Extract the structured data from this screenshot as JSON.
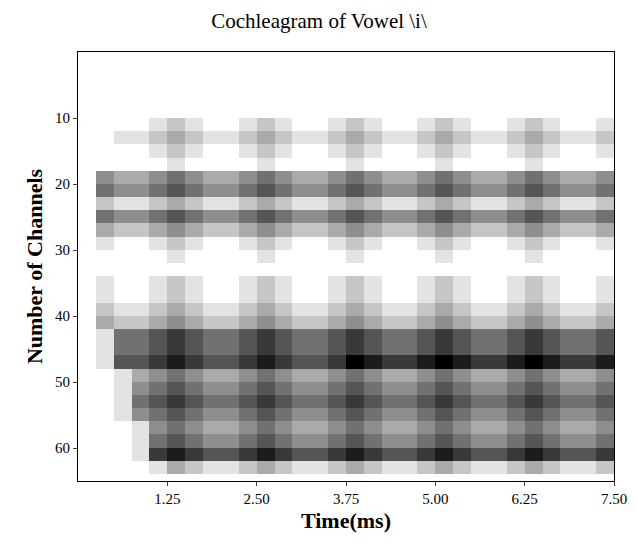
{
  "chart_data": {
    "type": "heatmap",
    "title": "Cochleagram of Vowel \\i\\",
    "x_label": "Time(ms)",
    "y_label": "Number of Channels",
    "xlim": [
      0,
      7.5
    ],
    "xticks": [
      1.25,
      {
        "value": 2.5,
        "label": "2.50"
      },
      3.75,
      {
        "value": 5,
        "label": "5.00"
      },
      6.25,
      {
        "value": 7.5,
        "label": "7.50"
      }
    ],
    "ylim": [
      65,
      0
    ],
    "yticks": [
      10,
      20,
      30,
      40,
      50,
      60
    ],
    "grid": false,
    "x": [
      0.125,
      0.375,
      0.625,
      0.875,
      1.125,
      1.375,
      1.625,
      1.875,
      2.125,
      2.375,
      2.625,
      2.875,
      3.125,
      3.375,
      3.625,
      3.875,
      4.125,
      4.375,
      4.625,
      4.875,
      5.125,
      5.375,
      5.625,
      5.875,
      6.125,
      6.375,
      6.625,
      6.875,
      7.125,
      7.375
    ],
    "y": [
      1,
      3,
      5,
      7,
      9,
      11,
      13,
      15,
      17,
      19,
      21,
      23,
      25,
      27,
      29,
      31,
      33,
      35,
      37,
      39,
      41,
      43,
      45,
      47,
      49,
      51,
      53,
      55,
      57,
      59,
      61,
      63
    ],
    "cells": [
      [
        0,
        0,
        0,
        0,
        0,
        0,
        0,
        0,
        0,
        0,
        0,
        0,
        0,
        0,
        0,
        0,
        0,
        0,
        0,
        0,
        0,
        0,
        0,
        0,
        0,
        0,
        0,
        0,
        0,
        0
      ],
      [
        0,
        0,
        0,
        0,
        0,
        0,
        0,
        0,
        0,
        0,
        0,
        0,
        0,
        0,
        0,
        0,
        0,
        0,
        0,
        0,
        0,
        0,
        0,
        0,
        0,
        0,
        0,
        0,
        0,
        0
      ],
      [
        0,
        0,
        0,
        0,
        0,
        0,
        0,
        0,
        0,
        0,
        0,
        0,
        0,
        0,
        0,
        0,
        0,
        0,
        0,
        0,
        0,
        0,
        0,
        0,
        0,
        0,
        0,
        0,
        0,
        0
      ],
      [
        0,
        0,
        0,
        0,
        0,
        0,
        0,
        0,
        0,
        0,
        0,
        0,
        0,
        0,
        0,
        0,
        0,
        0,
        0,
        0,
        0,
        0,
        0,
        0,
        0,
        0,
        0,
        0,
        0,
        0
      ],
      [
        0,
        0,
        0,
        0,
        0,
        0,
        0,
        0,
        0,
        0,
        0,
        0,
        0,
        0,
        0,
        0,
        0,
        0,
        0,
        0,
        0,
        0,
        0,
        0,
        0,
        0,
        0,
        0,
        0,
        0
      ],
      [
        0,
        0,
        0,
        0,
        1,
        2,
        1,
        0,
        0,
        1,
        2,
        1,
        0,
        0,
        1,
        2,
        1,
        0,
        0,
        1,
        2,
        1,
        0,
        0,
        1,
        2,
        1,
        0,
        0,
        1
      ],
      [
        0,
        0,
        1,
        1,
        2,
        3,
        2,
        1,
        1,
        2,
        3,
        2,
        1,
        1,
        2,
        3,
        2,
        1,
        1,
        2,
        3,
        2,
        1,
        1,
        2,
        3,
        2,
        1,
        1,
        2
      ],
      [
        0,
        0,
        0,
        0,
        1,
        2,
        1,
        0,
        0,
        1,
        2,
        1,
        0,
        0,
        1,
        2,
        1,
        0,
        0,
        1,
        2,
        1,
        0,
        0,
        1,
        2,
        1,
        0,
        0,
        1
      ],
      [
        0,
        0,
        0,
        0,
        0,
        1,
        0,
        0,
        0,
        0,
        1,
        0,
        0,
        0,
        0,
        1,
        0,
        0,
        0,
        0,
        1,
        0,
        0,
        0,
        0,
        1,
        0,
        0,
        0,
        0
      ],
      [
        0,
        4,
        3,
        3,
        4,
        5,
        4,
        3,
        3,
        4,
        5,
        4,
        3,
        3,
        4,
        5,
        4,
        3,
        3,
        4,
        5,
        4,
        3,
        3,
        4,
        5,
        4,
        3,
        3,
        4
      ],
      [
        0,
        5,
        4,
        4,
        5,
        6,
        5,
        4,
        4,
        5,
        6,
        5,
        4,
        4,
        5,
        6,
        5,
        4,
        4,
        5,
        6,
        5,
        4,
        4,
        5,
        6,
        5,
        4,
        4,
        5
      ],
      [
        0,
        2,
        1,
        1,
        2,
        3,
        2,
        1,
        1,
        2,
        3,
        2,
        1,
        1,
        2,
        3,
        2,
        1,
        1,
        2,
        3,
        2,
        1,
        1,
        2,
        3,
        2,
        1,
        1,
        2
      ],
      [
        0,
        5,
        4,
        4,
        5,
        6,
        5,
        4,
        4,
        5,
        6,
        5,
        4,
        4,
        5,
        6,
        5,
        4,
        4,
        5,
        6,
        5,
        4,
        4,
        5,
        6,
        5,
        4,
        4,
        5
      ],
      [
        0,
        3,
        2,
        2,
        3,
        4,
        3,
        2,
        2,
        3,
        4,
        3,
        2,
        2,
        3,
        4,
        3,
        2,
        2,
        3,
        4,
        3,
        2,
        2,
        3,
        4,
        3,
        2,
        2,
        3
      ],
      [
        0,
        1,
        0,
        0,
        1,
        2,
        1,
        0,
        0,
        1,
        2,
        1,
        0,
        0,
        1,
        2,
        1,
        0,
        0,
        1,
        2,
        1,
        0,
        0,
        1,
        2,
        1,
        0,
        0,
        1
      ],
      [
        0,
        0,
        0,
        0,
        0,
        1,
        0,
        0,
        0,
        0,
        1,
        0,
        0,
        0,
        0,
        1,
        0,
        0,
        0,
        0,
        1,
        0,
        0,
        0,
        0,
        1,
        0,
        0,
        0,
        0
      ],
      [
        0,
        0,
        0,
        0,
        0,
        0,
        0,
        0,
        0,
        0,
        0,
        0,
        0,
        0,
        0,
        0,
        0,
        0,
        0,
        0,
        0,
        0,
        0,
        0,
        0,
        0,
        0,
        0,
        0,
        0
      ],
      [
        0,
        1,
        0,
        0,
        1,
        2,
        1,
        0,
        0,
        1,
        2,
        1,
        0,
        0,
        1,
        2,
        1,
        0,
        0,
        1,
        2,
        1,
        0,
        0,
        1,
        2,
        1,
        0,
        0,
        1
      ],
      [
        0,
        1,
        0,
        0,
        1,
        2,
        1,
        0,
        0,
        1,
        2,
        1,
        0,
        0,
        1,
        2,
        1,
        0,
        0,
        1,
        2,
        1,
        0,
        0,
        1,
        2,
        1,
        0,
        0,
        1
      ],
      [
        0,
        2,
        1,
        1,
        2,
        3,
        2,
        1,
        1,
        2,
        3,
        2,
        1,
        1,
        2,
        3,
        2,
        1,
        1,
        2,
        3,
        2,
        1,
        1,
        2,
        3,
        2,
        1,
        1,
        2
      ],
      [
        0,
        3,
        2,
        2,
        3,
        4,
        3,
        2,
        2,
        3,
        4,
        3,
        2,
        2,
        3,
        4,
        3,
        2,
        2,
        3,
        4,
        3,
        2,
        2,
        3,
        4,
        3,
        2,
        2,
        3
      ],
      [
        0,
        1,
        5,
        5,
        6,
        7,
        6,
        5,
        5,
        6,
        7,
        6,
        5,
        5,
        6,
        7,
        6,
        5,
        5,
        6,
        7,
        6,
        5,
        5,
        6,
        7,
        6,
        5,
        5,
        6
      ],
      [
        0,
        1,
        5,
        5,
        6,
        7,
        6,
        5,
        5,
        6,
        7,
        6,
        5,
        5,
        6,
        7,
        6,
        5,
        5,
        6,
        7,
        6,
        5,
        5,
        6,
        7,
        6,
        5,
        5,
        6
      ],
      [
        0,
        1,
        6,
        6,
        7,
        8,
        7,
        6,
        6,
        7,
        8,
        7,
        6,
        6,
        7,
        9,
        8,
        7,
        7,
        8,
        9,
        8,
        7,
        7,
        8,
        9,
        8,
        7,
        7,
        8
      ],
      [
        0,
        0,
        1,
        3,
        4,
        5,
        4,
        3,
        3,
        4,
        5,
        4,
        3,
        3,
        4,
        5,
        4,
        3,
        3,
        4,
        5,
        4,
        3,
        3,
        4,
        5,
        4,
        3,
        3,
        4
      ],
      [
        0,
        0,
        1,
        4,
        5,
        6,
        5,
        4,
        4,
        5,
        6,
        5,
        4,
        4,
        5,
        6,
        5,
        4,
        4,
        5,
        6,
        5,
        4,
        4,
        5,
        6,
        5,
        4,
        4,
        5
      ],
      [
        0,
        0,
        1,
        5,
        6,
        7,
        6,
        5,
        5,
        6,
        7,
        6,
        5,
        5,
        6,
        7,
        6,
        5,
        5,
        6,
        7,
        6,
        5,
        5,
        6,
        7,
        6,
        5,
        5,
        6
      ],
      [
        0,
        0,
        1,
        4,
        5,
        6,
        5,
        4,
        4,
        5,
        6,
        5,
        4,
        4,
        5,
        6,
        5,
        4,
        4,
        5,
        6,
        5,
        4,
        4,
        5,
        6,
        5,
        4,
        4,
        5
      ],
      [
        0,
        0,
        0,
        1,
        4,
        5,
        4,
        3,
        3,
        4,
        5,
        4,
        3,
        3,
        4,
        5,
        4,
        3,
        3,
        4,
        5,
        4,
        3,
        3,
        4,
        5,
        4,
        3,
        3,
        4
      ],
      [
        0,
        0,
        0,
        1,
        5,
        6,
        5,
        4,
        4,
        5,
        6,
        5,
        4,
        4,
        5,
        6,
        5,
        4,
        4,
        5,
        6,
        5,
        4,
        4,
        5,
        6,
        5,
        4,
        4,
        5
      ],
      [
        0,
        0,
        0,
        1,
        7,
        8,
        7,
        6,
        6,
        7,
        8,
        7,
        6,
        6,
        7,
        8,
        7,
        6,
        6,
        7,
        8,
        7,
        6,
        6,
        7,
        8,
        7,
        6,
        6,
        7
      ],
      [
        0,
        0,
        0,
        0,
        1,
        3,
        2,
        1,
        1,
        2,
        3,
        2,
        1,
        1,
        2,
        3,
        2,
        1,
        1,
        2,
        3,
        2,
        1,
        1,
        2,
        3,
        2,
        1,
        1,
        2
      ]
    ]
  }
}
